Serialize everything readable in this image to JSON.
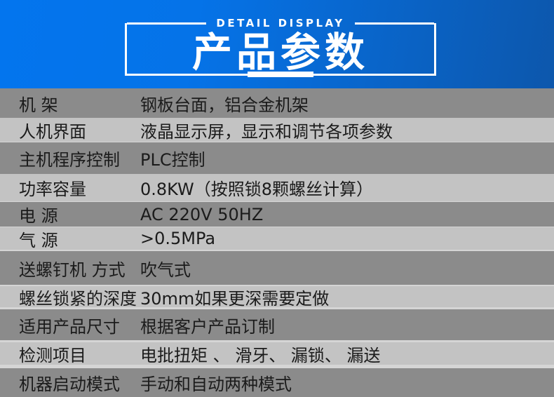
{
  "header": {
    "kicker": "DETAIL DISPLAY",
    "title": "产品参数",
    "colors": {
      "gradient_left": "#0375ee",
      "gradient_right": "#0d57ac",
      "accent": "#ffffff"
    }
  },
  "table": {
    "colors": {
      "row_dark": "#8b8b8b",
      "row_light": "#c3c3c3",
      "separator": "#d5d5d5",
      "text": "#1b1b1b"
    },
    "rows": [
      {
        "label": "机 架",
        "value": "钢板台面，铝合金机架"
      },
      {
        "label": "人机界面",
        "value": "液晶显示屏，显示和调节各项参数"
      },
      {
        "label": "主机程序控制",
        "value": "PLC控制"
      },
      {
        "label": "功率容量",
        "value": "0.8KW（按照锁8颗螺丝计算）"
      },
      {
        "label": "电 源",
        "value": "AC 220V 50HZ"
      },
      {
        "label": "气 源",
        "value": ">0.5MPa"
      },
      {
        "label": "送螺钉机 方式",
        "value": "吹气式"
      },
      {
        "label": "螺丝锁紧的深度",
        "value": "30mm如果更深需要定做"
      },
      {
        "label": "适用产品尺寸",
        "value": "根据客户产品订制"
      },
      {
        "label": "检测项目",
        "value": "电批扭矩 、 滑牙、 漏锁、 漏送"
      },
      {
        "label": "机器启动模式",
        "value": "手动和自动两种模式"
      }
    ]
  }
}
